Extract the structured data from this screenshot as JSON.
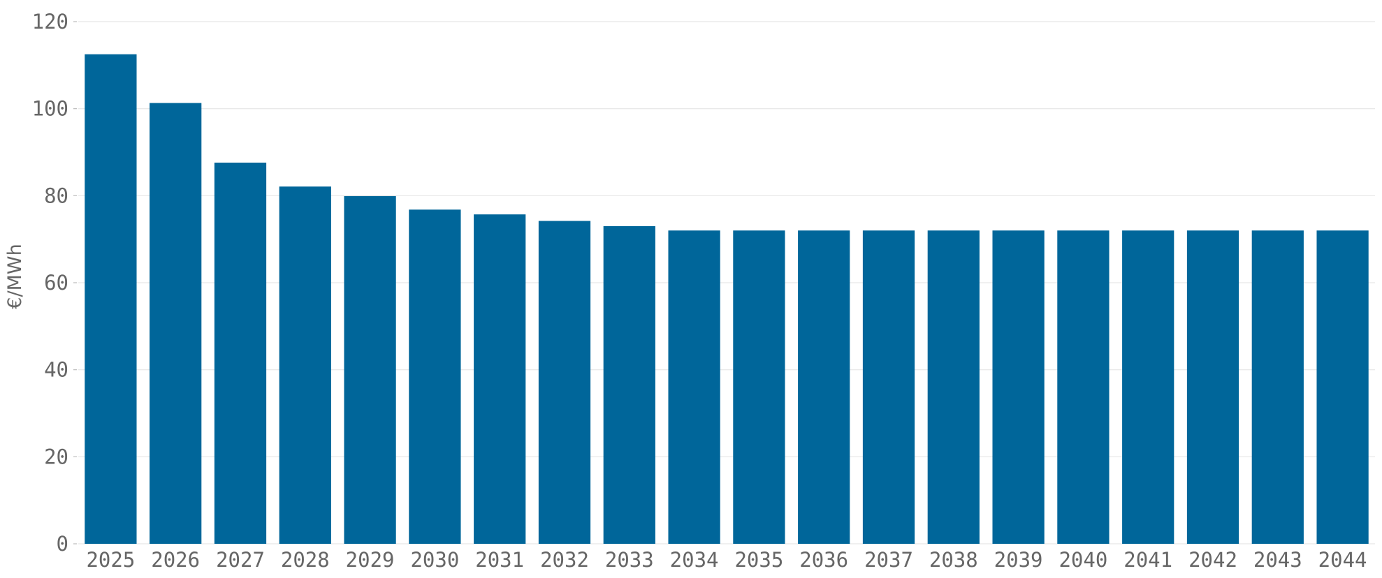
{
  "chart_data": {
    "type": "bar",
    "title": "",
    "xlabel": "",
    "ylabel": "€/MWh",
    "ylim": [
      0,
      120
    ],
    "yticks": [
      0,
      20,
      40,
      60,
      80,
      100,
      120
    ],
    "grid": true,
    "legend": "none",
    "bar_color": "#00669a",
    "categories": [
      "2025",
      "2026",
      "2027",
      "2028",
      "2029",
      "2030",
      "2031",
      "2032",
      "2033",
      "2034",
      "2035",
      "2036",
      "2037",
      "2038",
      "2039",
      "2040",
      "2041",
      "2042",
      "2043",
      "2044"
    ],
    "values": [
      112.5,
      101.3,
      87.6,
      82.1,
      79.9,
      76.8,
      75.7,
      74.2,
      73.0,
      72.0,
      72.0,
      72.0,
      72.0,
      72.0,
      72.0,
      72.0,
      72.0,
      72.0,
      72.0,
      72.0
    ]
  }
}
